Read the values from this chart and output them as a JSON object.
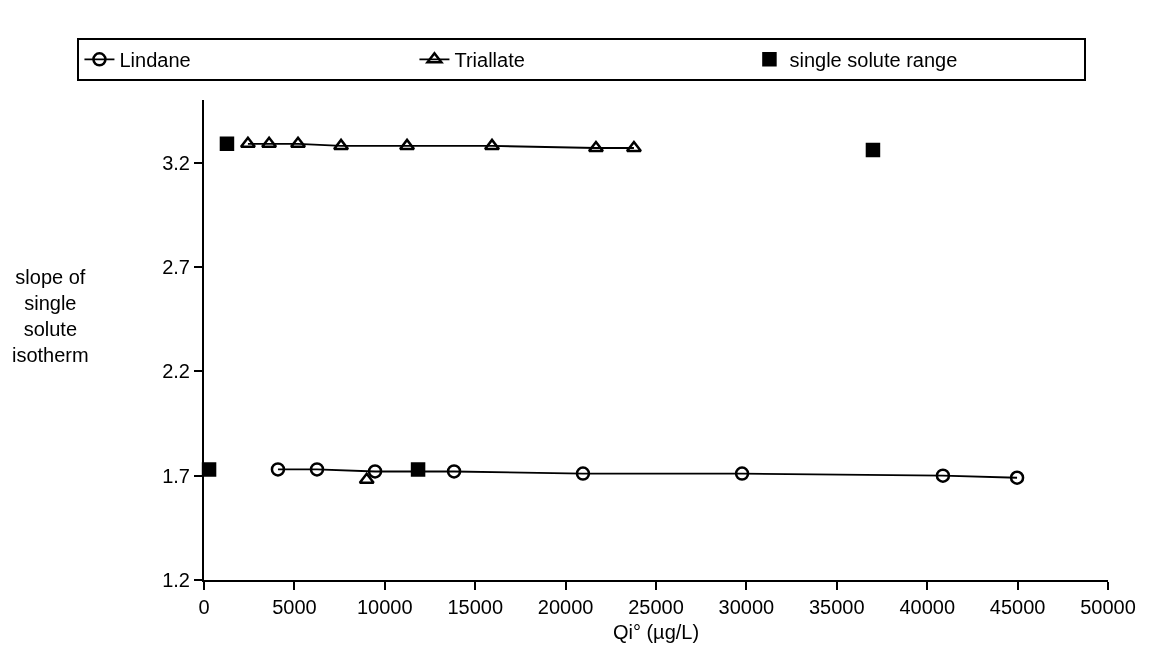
{
  "chart_data": {
    "type": "line",
    "xlabel": "Qi° (µg/L)",
    "ylabel": "slope of single solute isotherm",
    "xlim": [
      0,
      50000
    ],
    "xticks": [
      0,
      5000,
      10000,
      15000,
      20000,
      25000,
      30000,
      35000,
      40000,
      45000,
      50000
    ],
    "ylim": [
      1.2,
      3.5
    ],
    "yticks": [
      1.2,
      1.7,
      2.2,
      2.7,
      3.2
    ],
    "grid": false,
    "legend": "top",
    "series": [
      {
        "name": "Lindane",
        "color": "#000000",
        "marker": "circle",
        "x": [
          4090,
          6250,
          9460,
          13830,
          20960,
          29760,
          40870,
          44970
        ],
        "values": [
          1.73,
          1.73,
          1.72,
          1.72,
          1.71,
          1.71,
          1.7,
          1.69
        ]
      },
      {
        "name": "Triallate",
        "color": "#000000",
        "marker": "triangle",
        "x": [
          2430,
          3600,
          5200,
          7580,
          11230,
          15930,
          21680,
          23780
        ],
        "values": [
          3.29,
          3.29,
          3.29,
          3.28,
          3.28,
          3.28,
          3.27,
          3.27
        ]
      },
      {
        "type": "scatter",
        "color": "#000000",
        "marker": "triangle",
        "x": [
          9000
        ],
        "values": [
          1.68
        ]
      },
      {
        "name": "single solute range",
        "type": "scatter",
        "color": "#000000",
        "marker": "square",
        "x": [
          1270,
          280,
          11840,
          37000
        ],
        "values": [
          3.29,
          1.73,
          1.73,
          3.26
        ]
      }
    ]
  }
}
